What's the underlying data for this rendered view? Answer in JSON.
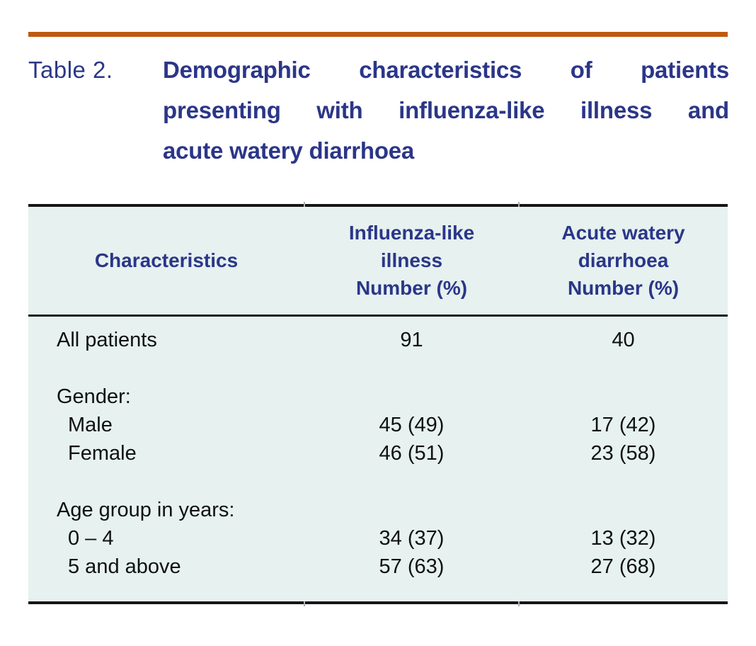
{
  "title": {
    "label": "Table 2.",
    "lines": [
      "Demographic characteristics of patients",
      "presenting with influenza-like illness and",
      "acute watery diarrhoea"
    ]
  },
  "colors": {
    "accent_orange": "#bf5a10",
    "heading_navy": "#2b3688",
    "table_background": "#e6f1f0",
    "body_text": "#101010",
    "rule_black": "#161616"
  },
  "table": {
    "headers": {
      "characteristics": "Characteristics",
      "influenza": "Influenza-like\nillness\nNumber (%)",
      "diarrhoea": "Acute watery\ndiarrhoea\nNumber (%)"
    },
    "rows": [
      {
        "label": "All patients",
        "ili": "91",
        "awd": "40"
      },
      {
        "label": "Gender:",
        "ili": "",
        "awd": ""
      },
      {
        "label": "Male",
        "ili": "45 (49)",
        "awd": "17 (42)"
      },
      {
        "label": "Female",
        "ili": "46 (51)",
        "awd": "23 (58)"
      },
      {
        "label": "Age group in years:",
        "ili": "",
        "awd": ""
      },
      {
        "label": "0 – 4",
        "ili": "34 (37)",
        "awd": "13 (32)"
      },
      {
        "label": "5 and above",
        "ili": "57 (63)",
        "awd": "27 (68)"
      }
    ]
  }
}
